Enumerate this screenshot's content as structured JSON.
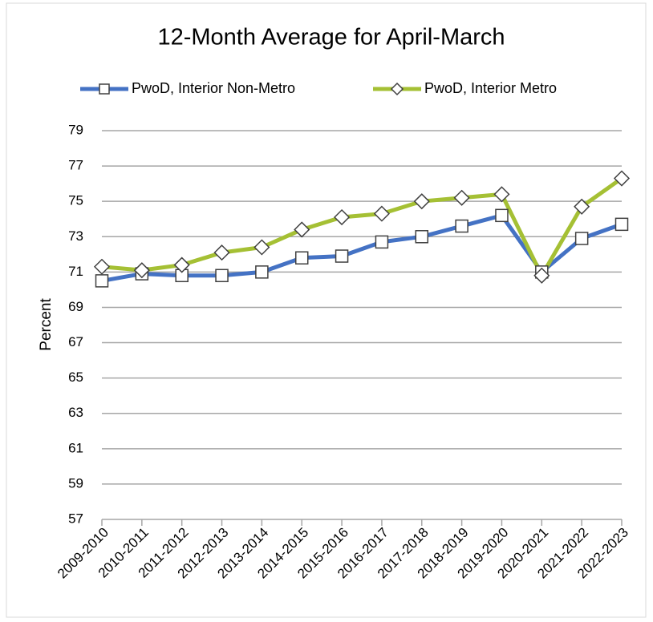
{
  "chart_data": {
    "type": "line",
    "title": "12-Month Average for April-March",
    "y_label": "Percent",
    "categories": [
      "2009-2010",
      "2010-2011",
      "2011-2012",
      "2012-2013",
      "2013-2014",
      "2014-2015",
      "2015-2016",
      "2016-2017",
      "2017-2018",
      "2018-2019",
      "2019-2020",
      "2020-2021",
      "2021-2022",
      "2022-2023"
    ],
    "series": [
      {
        "name": "PwoD, Interior Non-Metro",
        "color": "#4472c4",
        "marker": "square",
        "values": [
          70.5,
          70.9,
          70.8,
          70.8,
          71.0,
          71.8,
          71.9,
          72.7,
          73.0,
          73.6,
          74.2,
          71.0,
          72.9,
          73.7
        ]
      },
      {
        "name": "PwoD, Interior Metro",
        "color": "#a5c034",
        "marker": "diamond",
        "values": [
          71.3,
          71.1,
          71.4,
          72.1,
          72.4,
          73.4,
          74.1,
          74.3,
          75.0,
          75.2,
          75.4,
          70.8,
          74.7,
          76.3
        ]
      }
    ],
    "ylim": [
      57,
      79
    ],
    "yticks": [
      57,
      59,
      61,
      63,
      65,
      67,
      69,
      71,
      73,
      75,
      77,
      79
    ],
    "grid": true,
    "legend": "top"
  }
}
